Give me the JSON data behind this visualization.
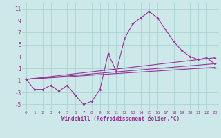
{
  "title": "",
  "xlabel": "Windchill (Refroidissement éolien,°C)",
  "ylabel": "",
  "xlim": [
    -0.5,
    23.5
  ],
  "ylim": [
    -6,
    12
  ],
  "yticks": [
    -5,
    -3,
    -1,
    1,
    3,
    5,
    7,
    9,
    11
  ],
  "xticks": [
    0,
    1,
    2,
    3,
    4,
    5,
    6,
    7,
    8,
    9,
    10,
    11,
    12,
    13,
    14,
    15,
    16,
    17,
    18,
    19,
    20,
    21,
    22,
    23
  ],
  "bg_color": "#cde8e8",
  "line_color": "#993399",
  "grid_color": "#aad4d4",
  "main_series_x": [
    0,
    1,
    2,
    3,
    4,
    5,
    6,
    7,
    8,
    9,
    10,
    11,
    12,
    13,
    14,
    15,
    16,
    17,
    18,
    19,
    20,
    21,
    22,
    23
  ],
  "main_series_y": [
    -0.8,
    -2.5,
    -2.5,
    -1.8,
    -2.8,
    -1.8,
    -3.5,
    -5.0,
    -4.5,
    -2.5,
    3.5,
    0.5,
    6.0,
    8.5,
    9.5,
    10.5,
    9.5,
    7.5,
    5.5,
    4.0,
    3.0,
    2.5,
    2.8,
    1.8
  ],
  "straight_lines": [
    {
      "x": [
        0,
        23
      ],
      "y": [
        -0.8,
        1.2
      ]
    },
    {
      "x": [
        0,
        23
      ],
      "y": [
        -0.8,
        1.8
      ]
    },
    {
      "x": [
        0,
        23
      ],
      "y": [
        -0.8,
        2.8
      ]
    }
  ]
}
